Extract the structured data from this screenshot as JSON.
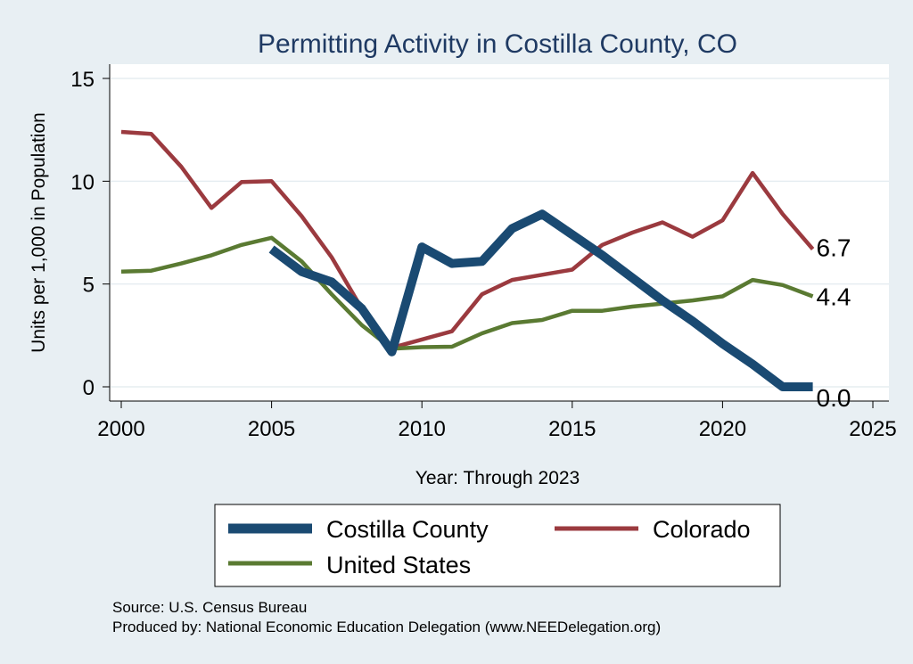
{
  "chart_data": {
    "type": "line",
    "title": "Permitting Activity in Costilla County, CO",
    "xlabel": "Year: Through 2023",
    "ylabel": "Units per 1,000 in Population",
    "xlim": [
      2000,
      2025
    ],
    "ylim": [
      0,
      15
    ],
    "x_ticks": [
      "2000",
      "2005",
      "2010",
      "2015",
      "2020",
      "2025"
    ],
    "y_ticks": [
      "0",
      "5",
      "10",
      "15"
    ],
    "grid": "horizontal",
    "legend_position": "bottom",
    "series": [
      {
        "name": "Costilla County",
        "color": "#1a4a72",
        "x": [
          2005,
          2006,
          2007,
          2008,
          2009,
          2010,
          2011,
          2012,
          2013,
          2014,
          2015,
          2016,
          2017,
          2018,
          2019,
          2020,
          2021,
          2022,
          2023
        ],
        "values": [
          6.7,
          5.6,
          5.1,
          3.8,
          1.7,
          6.8,
          6.0,
          6.1,
          7.7,
          8.4,
          7.4,
          6.4,
          5.3,
          4.2,
          3.2,
          2.1,
          1.1,
          0.0,
          0.0
        ],
        "end_label": "0.0"
      },
      {
        "name": "Colorado",
        "color": "#9b3a3f",
        "x": [
          2000,
          2001,
          2002,
          2003,
          2004,
          2005,
          2006,
          2007,
          2008,
          2009,
          2010,
          2011,
          2012,
          2013,
          2014,
          2015,
          2016,
          2017,
          2018,
          2019,
          2020,
          2021,
          2022,
          2023
        ],
        "values": [
          12.4,
          12.3,
          10.7,
          8.7,
          9.96,
          10.0,
          8.3,
          6.3,
          3.8,
          1.9,
          2.3,
          2.7,
          4.5,
          5.2,
          5.45,
          5.7,
          6.9,
          7.5,
          8.0,
          7.3,
          8.1,
          10.4,
          8.4,
          6.7
        ],
        "end_label": "6.7"
      },
      {
        "name": "United States",
        "color": "#5a7a32",
        "x": [
          2000,
          2001,
          2002,
          2003,
          2004,
          2005,
          2006,
          2007,
          2008,
          2009,
          2010,
          2011,
          2012,
          2013,
          2014,
          2015,
          2016,
          2017,
          2018,
          2019,
          2020,
          2021,
          2022,
          2023
        ],
        "values": [
          5.6,
          5.65,
          6.0,
          6.4,
          6.9,
          7.25,
          6.1,
          4.5,
          3.0,
          1.85,
          1.93,
          1.95,
          2.6,
          3.1,
          3.25,
          3.7,
          3.7,
          3.9,
          4.05,
          4.2,
          4.4,
          5.2,
          4.95,
          4.4
        ],
        "end_label": "4.4"
      }
    ]
  },
  "legend": {
    "items": [
      {
        "label": "Costilla County",
        "color": "#1a4a72"
      },
      {
        "label": "Colorado",
        "color": "#9b3a3f"
      },
      {
        "label": "United States",
        "color": "#5a7a32"
      }
    ]
  },
  "footer": {
    "source": "Source: U.S. Census Bureau",
    "produced_by": "Produced by: National Economic Education Delegation (www.NEEDelegation.org)"
  },
  "colors": {
    "background": "#e8eff3",
    "plot_background": "#ffffff",
    "title": "#1f3a63",
    "grid": "#e6edf1"
  }
}
